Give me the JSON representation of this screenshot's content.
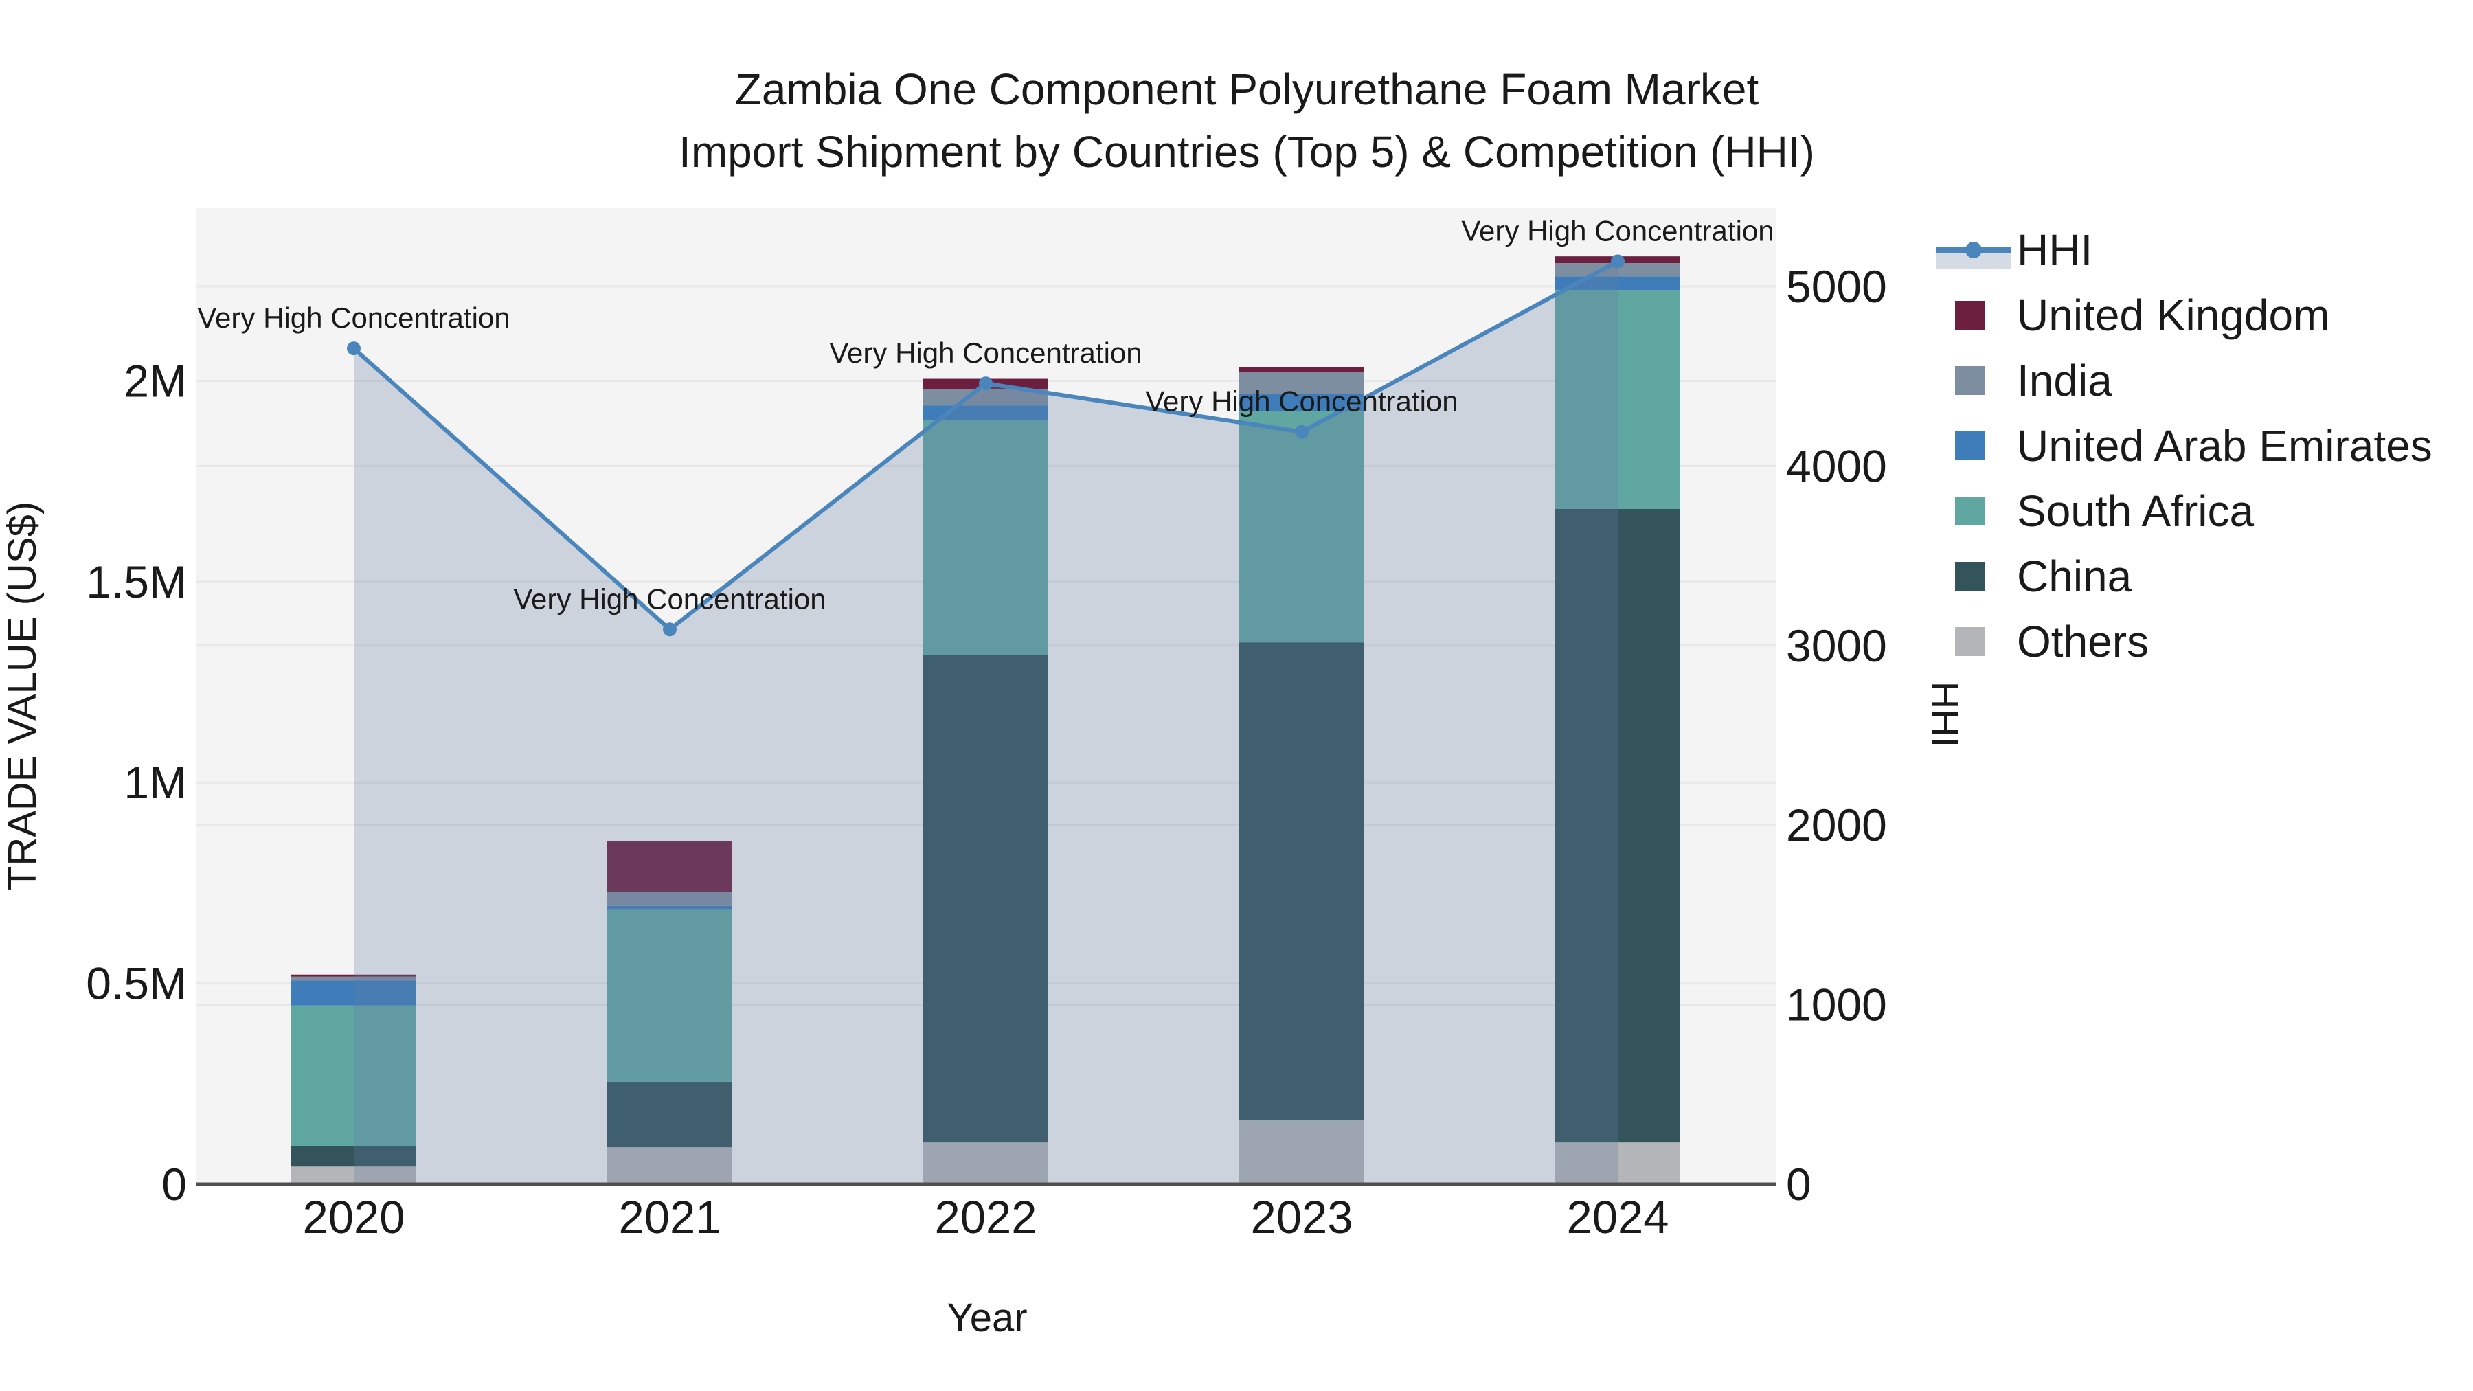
{
  "figure": {
    "title_line1": "Zambia One Component Polyurethane Foam Market",
    "title_line2": "Import Shipment by Countries (Top 5) & Competition (HHI)"
  },
  "chart_data": {
    "type": "combo-stacked-bar-line",
    "title": "Zambia One Component Polyurethane Foam Market",
    "subtitle": "Import Shipment by Countries (Top 5) & Competition (HHI)",
    "xlabel": "Year",
    "ylabel": "TRADE VALUE (US$)",
    "y2label": "HHI",
    "categories": [
      "2020",
      "2021",
      "2022",
      "2023",
      "2024"
    ],
    "stack_order": "bottom_to_top",
    "series": [
      {
        "name": "Others",
        "color": "#b3b5b8",
        "values": [
          44000,
          92000,
          104000,
          160000,
          104000
        ]
      },
      {
        "name": "China",
        "color": "#32545a",
        "values": [
          51000,
          163000,
          1213000,
          1189000,
          1577000
        ]
      },
      {
        "name": "South Africa",
        "color": "#60a7a1",
        "values": [
          350000,
          428000,
          584000,
          575000,
          545000
        ]
      },
      {
        "name": "United Arab Emirates",
        "color": "#3e7dba",
        "values": [
          62000,
          10000,
          38000,
          44000,
          34000
        ]
      },
      {
        "name": "India",
        "color": "#7e8ea1",
        "values": [
          10000,
          34000,
          40000,
          53000,
          33000
        ]
      },
      {
        "name": "United Kingdom",
        "color": "#6d1f40",
        "values": [
          5000,
          127000,
          26000,
          14000,
          17000
        ]
      }
    ],
    "line_series": {
      "name": "HHI",
      "axis": "y2",
      "color": "#4a86bc",
      "fill_color": "rgba(100,125,160,0.28)",
      "values": [
        4655,
        3090,
        4460,
        4190,
        5140
      ]
    },
    "annotations": [
      {
        "category": "2020",
        "text": "Very High Concentration"
      },
      {
        "category": "2021",
        "text": "Very High Concentration"
      },
      {
        "category": "2022",
        "text": "Very High Concentration"
      },
      {
        "category": "2023",
        "text": "Very High Concentration"
      },
      {
        "category": "2024",
        "text": "Very High Concentration"
      }
    ],
    "y_axis": {
      "ticks": [
        {
          "label": "0",
          "value": 0
        },
        {
          "label": "0.5M",
          "value": 500000
        },
        {
          "label": "1M",
          "value": 1000000
        },
        {
          "label": "1.5M",
          "value": 1500000
        },
        {
          "label": "2M",
          "value": 2000000
        }
      ],
      "range": [
        0,
        2430000
      ],
      "grid": true
    },
    "y2_axis": {
      "ticks": [
        {
          "label": "0",
          "value": 0
        },
        {
          "label": "1000",
          "value": 1000
        },
        {
          "label": "2000",
          "value": 2000
        },
        {
          "label": "3000",
          "value": 3000
        },
        {
          "label": "4000",
          "value": 4000
        },
        {
          "label": "5000",
          "value": 5000
        }
      ],
      "range": [
        0,
        5436
      ],
      "grid": true
    },
    "legend": {
      "position": "right",
      "items": [
        "HHI",
        "United Kingdom",
        "India",
        "United Arab Emirates",
        "South Africa",
        "China",
        "Others"
      ]
    },
    "colors": {
      "plot_bg": "#f4f4f4",
      "grid": "#e8e8e8",
      "axis_line": "#4f4f4f",
      "text": "#1a1a1a"
    }
  }
}
